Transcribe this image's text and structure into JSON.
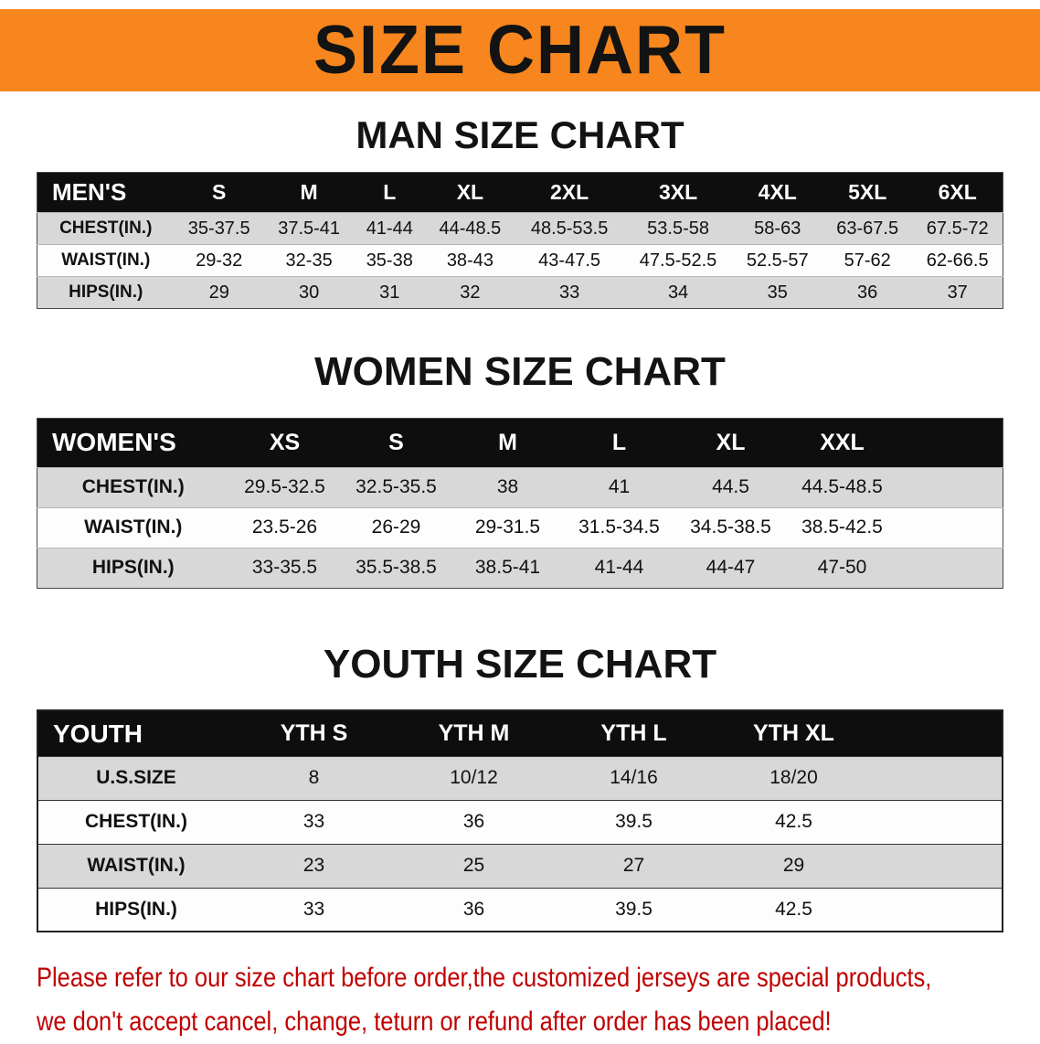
{
  "banner": {
    "title": "SIZE CHART",
    "bg_color": "#f6861d"
  },
  "sections": [
    {
      "heading": "MAN SIZE CHART",
      "table": {
        "title": "MEN'S",
        "columns": [
          "S",
          "M",
          "L",
          "XL",
          "2XL",
          "3XL",
          "4XL",
          "5XL",
          "6XL"
        ],
        "rows": [
          {
            "label": "CHEST(IN.)",
            "values": [
              "35-37.5",
              "37.5-41",
              "41-44",
              "44-48.5",
              "48.5-53.5",
              "53.5-58",
              "58-63",
              "63-67.5",
              "67.5-72"
            ]
          },
          {
            "label": "WAIST(IN.)",
            "values": [
              "29-32",
              "32-35",
              "35-38",
              "38-43",
              "43-47.5",
              "47.5-52.5",
              "52.5-57",
              "57-62",
              "62-66.5"
            ]
          },
          {
            "label": "HIPS(IN.)",
            "values": [
              "29",
              "30",
              "31",
              "32",
              "33",
              "34",
              "35",
              "36",
              "37"
            ]
          }
        ]
      }
    },
    {
      "heading": "WOMEN SIZE CHART",
      "table": {
        "title": "WOMEN'S",
        "columns": [
          "XS",
          "S",
          "M",
          "L",
          "XL",
          "XXL"
        ],
        "rows": [
          {
            "label": "CHEST(IN.)",
            "values": [
              "29.5-32.5",
              "32.5-35.5",
              "38",
              "41",
              "44.5",
              "44.5-48.5"
            ]
          },
          {
            "label": "WAIST(IN.)",
            "values": [
              "23.5-26",
              "26-29",
              "29-31.5",
              "31.5-34.5",
              "34.5-38.5",
              "38.5-42.5"
            ]
          },
          {
            "label": "HIPS(IN.)",
            "values": [
              "33-35.5",
              "35.5-38.5",
              "38.5-41",
              "41-44",
              "44-47",
              "47-50"
            ]
          }
        ]
      }
    },
    {
      "heading": "YOUTH SIZE CHART",
      "table": {
        "title": "YOUTH",
        "columns": [
          "YTH S",
          "YTH M",
          "YTH L",
          "YTH XL"
        ],
        "rows": [
          {
            "label": "U.S.SIZE",
            "values": [
              "8",
              "10/12",
              "14/16",
              "18/20"
            ]
          },
          {
            "label": "CHEST(IN.)",
            "values": [
              "33",
              "36",
              "39.5",
              "42.5"
            ]
          },
          {
            "label": "WAIST(IN.)",
            "values": [
              "23",
              "25",
              "27",
              "29"
            ]
          },
          {
            "label": "HIPS(IN.)",
            "values": [
              "33",
              "36",
              "39.5",
              "42.5"
            ]
          }
        ]
      }
    }
  ],
  "footer": {
    "line1": "Please refer to our size chart before order,the customized jerseys are special products,",
    "line2": "we don't accept cancel, change, teturn or refund after order has been placed!",
    "text_color": "#c00000"
  }
}
